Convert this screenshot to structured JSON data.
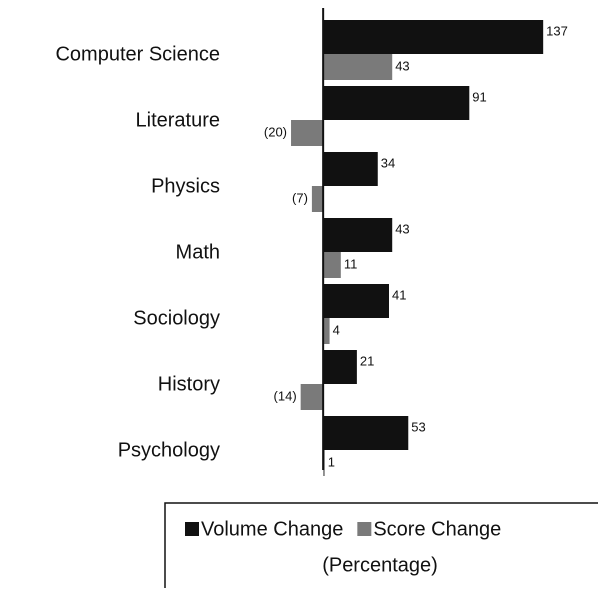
{
  "chart_data": {
    "type": "bar",
    "orientation": "horizontal",
    "categories": [
      "Computer Science",
      "Literature",
      "Physics",
      "Math",
      "Sociology",
      "History",
      "Psychology"
    ],
    "series": [
      {
        "name": "Volume Change",
        "color": "#111111",
        "values": [
          137,
          91,
          34,
          43,
          41,
          21,
          53
        ]
      },
      {
        "name": "Score Change",
        "color": "#7a7a7a",
        "values": [
          43,
          -20,
          -7,
          11,
          4,
          -14,
          1
        ],
        "value_labels": [
          "43",
          "(20)",
          "(7)",
          "11",
          "4",
          "(14)",
          "1"
        ]
      }
    ],
    "xlim": [
      -25,
      140
    ],
    "legend_title": "(Percentage)"
  }
}
